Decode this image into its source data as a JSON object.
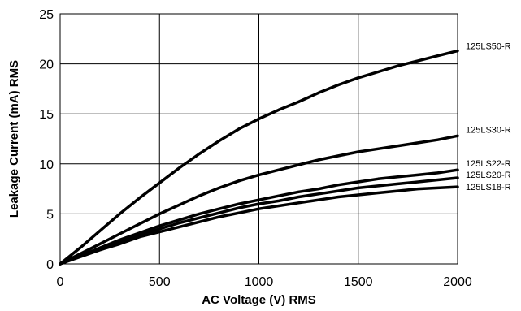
{
  "chart_data": {
    "type": "line",
    "title": "",
    "xlabel": "AC Voltage (V) RMS",
    "ylabel": "Leakage Current (mA) RMS",
    "xlim": [
      0,
      2000
    ],
    "ylim": [
      0,
      25
    ],
    "xticks": [
      0,
      500,
      1000,
      1500,
      2000
    ],
    "yticks": [
      0,
      5,
      10,
      15,
      20,
      25
    ],
    "grid": true,
    "legend": "series labels at right end of lines",
    "series": [
      {
        "name": "125LS50-R",
        "x": [
          0,
          100,
          200,
          300,
          400,
          500,
          600,
          700,
          800,
          900,
          1000,
          1100,
          1200,
          1300,
          1400,
          1500,
          1600,
          1700,
          1800,
          1900,
          2000
        ],
        "y": [
          0,
          1.6,
          3.3,
          5.0,
          6.6,
          8.1,
          9.6,
          11.0,
          12.3,
          13.5,
          14.5,
          15.4,
          16.2,
          17.1,
          17.9,
          18.6,
          19.2,
          19.8,
          20.3,
          20.8,
          21.3
        ]
      },
      {
        "name": "125LS30-R",
        "x": [
          0,
          100,
          200,
          300,
          400,
          500,
          600,
          700,
          800,
          900,
          1000,
          1100,
          1200,
          1300,
          1400,
          1500,
          1600,
          1700,
          1800,
          1900,
          2000
        ],
        "y": [
          0,
          1.0,
          2.0,
          3.0,
          4.0,
          5.0,
          5.9,
          6.8,
          7.6,
          8.3,
          8.9,
          9.4,
          9.9,
          10.4,
          10.8,
          11.2,
          11.5,
          11.8,
          12.1,
          12.4,
          12.8
        ]
      },
      {
        "name": "125LS22-R",
        "x": [
          0,
          100,
          200,
          300,
          400,
          500,
          600,
          700,
          800,
          900,
          1000,
          1100,
          1200,
          1300,
          1400,
          1500,
          1600,
          1700,
          1800,
          1900,
          2000
        ],
        "y": [
          0,
          0.8,
          1.6,
          2.4,
          3.1,
          3.8,
          4.4,
          5.0,
          5.5,
          6.0,
          6.4,
          6.8,
          7.2,
          7.5,
          7.9,
          8.2,
          8.5,
          8.7,
          8.9,
          9.1,
          9.4
        ]
      },
      {
        "name": "125LS20-R",
        "x": [
          0,
          100,
          200,
          300,
          400,
          500,
          600,
          700,
          800,
          900,
          1000,
          1100,
          1200,
          1300,
          1400,
          1500,
          1600,
          1700,
          1800,
          1900,
          2000
        ],
        "y": [
          0,
          0.75,
          1.5,
          2.2,
          2.9,
          3.5,
          4.1,
          4.6,
          5.1,
          5.6,
          6.0,
          6.3,
          6.7,
          7.0,
          7.3,
          7.6,
          7.8,
          8.0,
          8.2,
          8.4,
          8.6
        ]
      },
      {
        "name": "125LS18-R",
        "x": [
          0,
          100,
          200,
          300,
          400,
          500,
          600,
          700,
          800,
          900,
          1000,
          1100,
          1200,
          1300,
          1400,
          1500,
          1600,
          1700,
          1800,
          1900,
          2000
        ],
        "y": [
          0,
          0.7,
          1.4,
          2.0,
          2.7,
          3.2,
          3.7,
          4.2,
          4.7,
          5.1,
          5.5,
          5.8,
          6.1,
          6.4,
          6.7,
          6.9,
          7.1,
          7.3,
          7.5,
          7.6,
          7.7
        ]
      }
    ]
  }
}
